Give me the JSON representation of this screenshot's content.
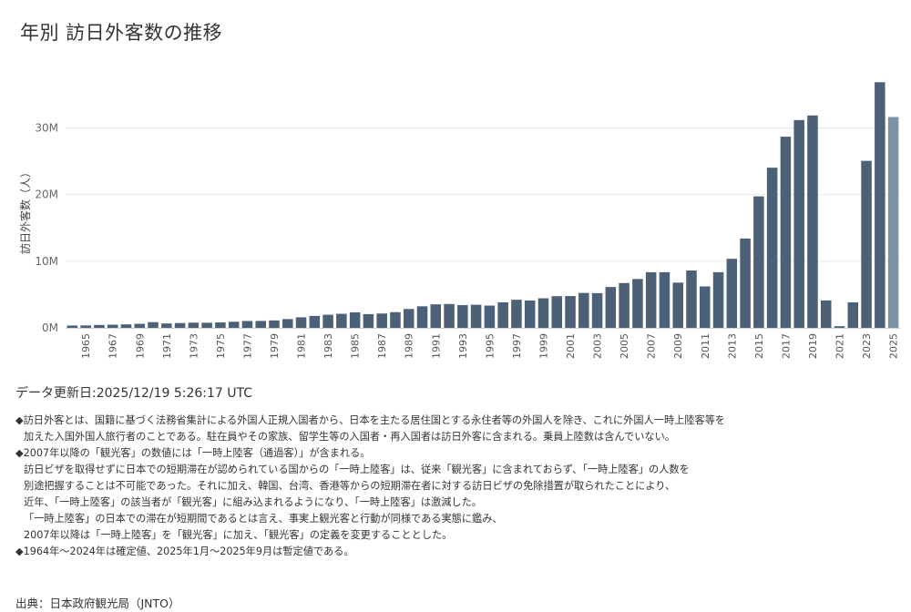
{
  "title": "年別 訪日外客数の推移",
  "chart_data": {
    "type": "bar",
    "ylabel": "訪日外客数（人）",
    "xlabel": "",
    "ylim": [
      0,
      38000000
    ],
    "yticks": [
      0,
      10000000,
      20000000,
      30000000
    ],
    "ytick_labels": [
      "0M",
      "10M",
      "20M",
      "30M"
    ],
    "grid": true,
    "bar_color": "#4c6078",
    "provisional_bar_color": "#7f93a7",
    "provisional_year": 2025,
    "x_tick_labels": [
      "1965",
      "1967",
      "1969",
      "1971",
      "1973",
      "1975",
      "1977",
      "1979",
      "1981",
      "1983",
      "1985",
      "1987",
      "1989",
      "1991",
      "1993",
      "1995",
      "1997",
      "1999",
      "2001",
      "2003",
      "2005",
      "2007",
      "2009",
      "2011",
      "2013",
      "2015",
      "2017",
      "2019",
      "2021",
      "2023",
      "2025"
    ],
    "categories": [
      1964,
      1965,
      1966,
      1967,
      1968,
      1969,
      1970,
      1971,
      1972,
      1973,
      1974,
      1975,
      1976,
      1977,
      1978,
      1979,
      1980,
      1981,
      1982,
      1983,
      1984,
      1985,
      1986,
      1987,
      1988,
      1989,
      1990,
      1991,
      1992,
      1993,
      1994,
      1995,
      1996,
      1997,
      1998,
      1999,
      2000,
      2001,
      2002,
      2003,
      2004,
      2005,
      2006,
      2007,
      2008,
      2009,
      2010,
      2011,
      2012,
      2013,
      2014,
      2015,
      2016,
      2017,
      2018,
      2019,
      2020,
      2021,
      2022,
      2023,
      2024,
      2025
    ],
    "values": [
      353000,
      367000,
      433000,
      476000,
      519000,
      609000,
      854000,
      661000,
      724000,
      785000,
      764000,
      812000,
      915000,
      1028000,
      1039000,
      1113000,
      1317000,
      1583000,
      1793000,
      1968000,
      2110000,
      2327000,
      2062000,
      2155000,
      2355000,
      2835000,
      3236000,
      3533000,
      3582000,
      3410000,
      3468000,
      3345000,
      3837000,
      4218000,
      4106000,
      4438000,
      4757000,
      4772000,
      5239000,
      5212000,
      6138000,
      6728000,
      7334000,
      8347000,
      8351000,
      6790000,
      8611000,
      6219000,
      8358000,
      10364000,
      13413000,
      19737000,
      24039000,
      28691000,
      31192000,
      31882000,
      4116000,
      246000,
      3832000,
      25066000,
      36870000,
      31650000
    ]
  },
  "updated": "データ更新日:2025/12/19 5:26:17 UTC",
  "notes": [
    "◆訪日外客とは、国籍に基づく法務省集計による外国人正規入国者から、日本を主たる居住国とする永住者等の外国人を除き、これに外国人一時上陸客等を",
    "加えた入国外国人旅行者のことである。駐在員やその家族、留学生等の入国者・再入国者は訪日外客に含まれる。乗員上陸数は含んでいない。",
    "◆2007年以降の「観光客」の数値には「一時上陸客（通過客）」が含まれる。",
    "訪日ビザを取得せずに日本での短期滞在が認められている国からの「一時上陸客」は、従来「観光客」に含まれておらず、「一時上陸客」の人数を",
    "別途把握することは不可能であった。それに加え、韓国、台湾、香港等からの短期滞在者に対する訪日ビザの免除措置が取られたことにより、",
    "近年、「一時上陸客」の該当者が「観光客」に組み込まれるようになり、「一時上陸客」は激減した。",
    "「一時上陸客」の日本での滞在が短期間であるとは言え、事実上観光客と行動が同様である実態に鑑み、",
    "2007年以降は「一時上陸客」を「観光客」に加え、「観光客」の定義を変更することとした。",
    "◆1964年〜2024年は確定値、2025年1月〜2025年9月は暫定値である。"
  ],
  "source": "出典：日本政府観光局（JNTO）"
}
